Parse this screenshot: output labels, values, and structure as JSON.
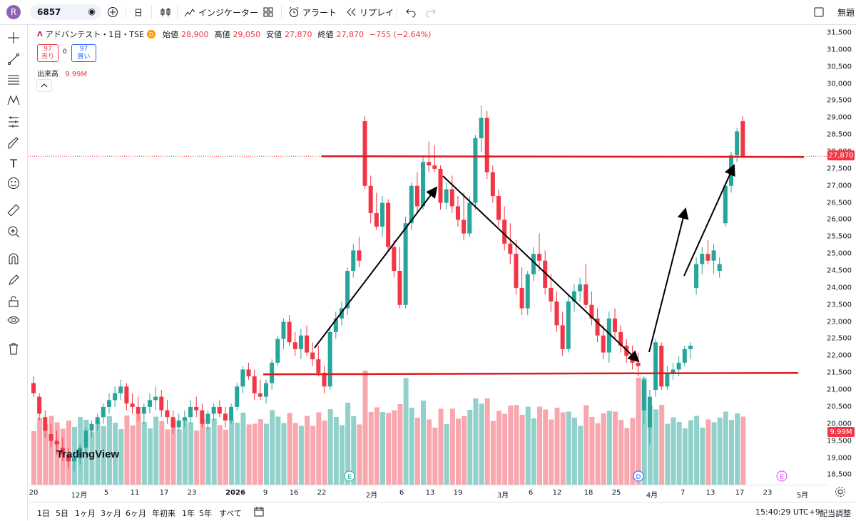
{
  "topbar": {
    "avatar_letter": "R",
    "symbol": "6857",
    "interval": "日",
    "indicators_label": "インジケーター",
    "alert_label": "アラート",
    "replay_label": "リプレイ",
    "right_label": "無題"
  },
  "legend": {
    "name": "アドバンテスト・1日・TSE",
    "badge": "D",
    "open_label": "始値",
    "open": "28,900",
    "high_label": "高値",
    "high": "29,050",
    "low_label": "安値",
    "low": "27,870",
    "close_label": "終値",
    "close": "27,870",
    "change": "−755 (−2.64%)",
    "sell_value": "97",
    "sell_label": "売り",
    "spread": "0",
    "buy_value": "97",
    "buy_label": "買い",
    "volume_label": "出来高",
    "volume": "9.99M"
  },
  "colors": {
    "up": "#26a69a",
    "down": "#f23645",
    "up_vol": "#92d1cb",
    "down_vol": "#f7a7ad",
    "line": "#e0191f"
  },
  "price_axis": {
    "ticks": [
      "31,500",
      "31,000",
      "30,500",
      "30,000",
      "29,500",
      "29,000",
      "28,500",
      "28,000",
      "27,500",
      "27,000",
      "26,500",
      "26,000",
      "25,500",
      "25,000",
      "24,500",
      "24,000",
      "23,500",
      "23,000",
      "22,500",
      "22,000",
      "21,500",
      "21,000",
      "20,500",
      "20,000",
      "19,500",
      "19,000",
      "18,500"
    ],
    "current_price": "27,870",
    "volume_tag": "9.99M"
  },
  "time_axis": {
    "labels": [
      "20",
      "12月",
      "5",
      "11",
      "17",
      "23",
      "2026",
      "9",
      "16",
      "22",
      "2月",
      "6",
      "13",
      "19",
      "3月",
      "6",
      "12",
      "18",
      "25",
      "4月",
      "7",
      "13",
      "17",
      "23",
      "5月"
    ]
  },
  "markers": [
    "E",
    "D",
    "E"
  ],
  "watermark": "TradingView",
  "bottombar": {
    "ranges": [
      "1日",
      "5日",
      "1ヶ月",
      "3ヶ月",
      "6ヶ月",
      "年初来",
      "1年",
      "5年",
      "すべて"
    ],
    "time": "15:40:29 UTC+9",
    "adjust": "配当調整"
  },
  "chart_data": {
    "type": "candlestick",
    "symbol": "アドバンテスト",
    "exchange": "TSE",
    "interval": "1日",
    "ylim": [
      18300,
      31700
    ],
    "candles": [
      [
        21200,
        21400,
        20800,
        20900
      ],
      [
        20800,
        20900,
        20100,
        20300
      ],
      [
        20200,
        20400,
        19600,
        19800
      ],
      [
        19700,
        20000,
        19300,
        19500
      ],
      [
        19500,
        19800,
        19100,
        19400
      ],
      [
        19300,
        19600,
        18900,
        19100
      ],
      [
        19100,
        19300,
        18700,
        18900
      ],
      [
        18900,
        19200,
        18600,
        19000
      ],
      [
        19000,
        19400,
        18800,
        19300
      ],
      [
        19300,
        19900,
        19100,
        19800
      ],
      [
        19800,
        20100,
        19600,
        20000
      ],
      [
        20000,
        20300,
        19800,
        20200
      ],
      [
        20200,
        20600,
        20000,
        20500
      ],
      [
        20500,
        20900,
        20300,
        20700
      ],
      [
        20700,
        21100,
        20500,
        20900
      ],
      [
        20900,
        21300,
        20700,
        21100
      ],
      [
        21100,
        21200,
        20400,
        20600
      ],
      [
        20600,
        20900,
        20300,
        20500
      ],
      [
        20500,
        20800,
        20100,
        20300
      ],
      [
        20300,
        20600,
        20000,
        20500
      ],
      [
        20500,
        20900,
        20300,
        20700
      ],
      [
        20700,
        21100,
        20400,
        20800
      ],
      [
        20800,
        21000,
        20200,
        20400
      ],
      [
        20400,
        20700,
        20000,
        20200
      ],
      [
        20200,
        20400,
        19700,
        19900
      ],
      [
        19900,
        20300,
        19800,
        20100
      ],
      [
        20100,
        20400,
        19900,
        20200
      ],
      [
        20200,
        20700,
        20000,
        20500
      ],
      [
        20500,
        20800,
        20200,
        20400
      ],
      [
        20400,
        20600,
        19900,
        20000
      ],
      [
        20000,
        20400,
        19800,
        20300
      ],
      [
        20300,
        20600,
        20100,
        20500
      ],
      [
        20500,
        20700,
        20200,
        20300
      ],
      [
        20300,
        20500,
        19900,
        20100
      ],
      [
        20100,
        20600,
        20000,
        20500
      ],
      [
        20500,
        21200,
        20400,
        21100
      ],
      [
        21100,
        21700,
        20900,
        21600
      ],
      [
        21600,
        21800,
        21300,
        21400
      ],
      [
        21400,
        21600,
        20700,
        20900
      ],
      [
        20900,
        21300,
        20700,
        20800
      ],
      [
        20800,
        21300,
        20600,
        21200
      ],
      [
        21200,
        21900,
        21000,
        21800
      ],
      [
        21800,
        22600,
        21700,
        22500
      ],
      [
        22500,
        23100,
        22200,
        23000
      ],
      [
        23000,
        23200,
        22300,
        22400
      ],
      [
        22400,
        22700,
        22000,
        22200
      ],
      [
        22200,
        22800,
        21900,
        22600
      ],
      [
        22600,
        22900,
        22000,
        22100
      ],
      [
        22100,
        22400,
        21700,
        21900
      ],
      [
        21900,
        22300,
        21400,
        21500
      ],
      [
        21500,
        21700,
        20900,
        21100
      ],
      [
        21100,
        22800,
        21000,
        22700
      ],
      [
        22700,
        23300,
        22500,
        23100
      ],
      [
        23100,
        23600,
        22900,
        23400
      ],
      [
        23400,
        24600,
        23200,
        24500
      ],
      [
        24500,
        25300,
        24300,
        25100
      ],
      [
        25100,
        25500,
        24600,
        24800
      ],
      [
        28900,
        29050,
        26900,
        27000
      ],
      [
        27000,
        27300,
        25900,
        26200
      ],
      [
        26200,
        26800,
        25700,
        25800
      ],
      [
        25800,
        26700,
        25500,
        26500
      ],
      [
        26500,
        26600,
        25100,
        25200
      ],
      [
        25200,
        25400,
        24300,
        24500
      ],
      [
        24500,
        25200,
        23400,
        23500
      ],
      [
        23500,
        26100,
        23400,
        25900
      ],
      [
        25900,
        27100,
        25700,
        27000
      ],
      [
        27000,
        27400,
        26200,
        26400
      ],
      [
        26400,
        27900,
        26300,
        27700
      ],
      [
        27700,
        28300,
        27400,
        27600
      ],
      [
        27600,
        28200,
        27400,
        27500
      ],
      [
        27500,
        27600,
        26300,
        26500
      ],
      [
        26500,
        27100,
        26300,
        26900
      ],
      [
        26900,
        27300,
        26200,
        26400
      ],
      [
        26400,
        26700,
        25800,
        26000
      ],
      [
        26000,
        26800,
        25400,
        25600
      ],
      [
        25600,
        26700,
        25500,
        26500
      ],
      [
        26500,
        28500,
        26300,
        28400
      ],
      [
        28400,
        29350,
        28000,
        29000
      ],
      [
        29000,
        29200,
        27200,
        27400
      ],
      [
        27400,
        27600,
        26500,
        26700
      ],
      [
        26700,
        26900,
        25800,
        26000
      ],
      [
        26000,
        26400,
        25100,
        25300
      ],
      [
        25300,
        25900,
        24700,
        25000
      ],
      [
        25000,
        25400,
        23800,
        24000
      ],
      [
        24000,
        24600,
        23200,
        23400
      ],
      [
        23400,
        24500,
        23200,
        24400
      ],
      [
        24400,
        25200,
        24200,
        25000
      ],
      [
        25000,
        25600,
        24500,
        24800
      ],
      [
        24800,
        25100,
        23800,
        24000
      ],
      [
        24000,
        24400,
        23300,
        23600
      ],
      [
        23600,
        23900,
        22700,
        22900
      ],
      [
        22900,
        23300,
        22000,
        22200
      ],
      [
        22200,
        23800,
        22100,
        23600
      ],
      [
        23600,
        24100,
        23300,
        23900
      ],
      [
        23900,
        24300,
        23600,
        24100
      ],
      [
        24100,
        24700,
        23400,
        23500
      ],
      [
        23500,
        23900,
        22900,
        23100
      ],
      [
        23100,
        23400,
        22400,
        22600
      ],
      [
        22600,
        22900,
        21900,
        22100
      ],
      [
        22100,
        23300,
        21800,
        23100
      ],
      [
        23100,
        23400,
        22500,
        22700
      ],
      [
        22700,
        22900,
        22100,
        22300
      ],
      [
        22300,
        22500,
        21800,
        22000
      ],
      [
        22000,
        22300,
        21600,
        21800
      ],
      [
        21800,
        22100,
        21400,
        21700
      ],
      [
        20400,
        21400,
        20000,
        21300
      ],
      [
        19900,
        21000,
        19400,
        20800
      ],
      [
        21000,
        22500,
        20800,
        22400
      ],
      [
        22300,
        22400,
        21000,
        21100
      ],
      [
        21100,
        21700,
        21000,
        21500
      ],
      [
        21500,
        21800,
        21300,
        21600
      ],
      [
        21600,
        22000,
        21400,
        21800
      ],
      [
        21800,
        22300,
        21700,
        22200
      ],
      [
        22200,
        22400,
        21900,
        22300
      ],
      [
        24000,
        24900,
        23800,
        24700
      ],
      [
        24700,
        25200,
        24400,
        25000
      ],
      [
        25000,
        25400,
        24700,
        24800
      ],
      [
        24800,
        25300,
        24400,
        25100
      ],
      [
        24500,
        24900,
        24300,
        24700
      ],
      [
        25900,
        27100,
        25800,
        27000
      ],
      [
        27000,
        28000,
        26800,
        27900
      ],
      [
        27900,
        28700,
        27700,
        28600
      ],
      [
        28900,
        29050,
        27870,
        27870
      ]
    ],
    "support_level": 21500,
    "resistance_level": 27870,
    "last_close": 27870,
    "last_volume": "9.99M"
  }
}
